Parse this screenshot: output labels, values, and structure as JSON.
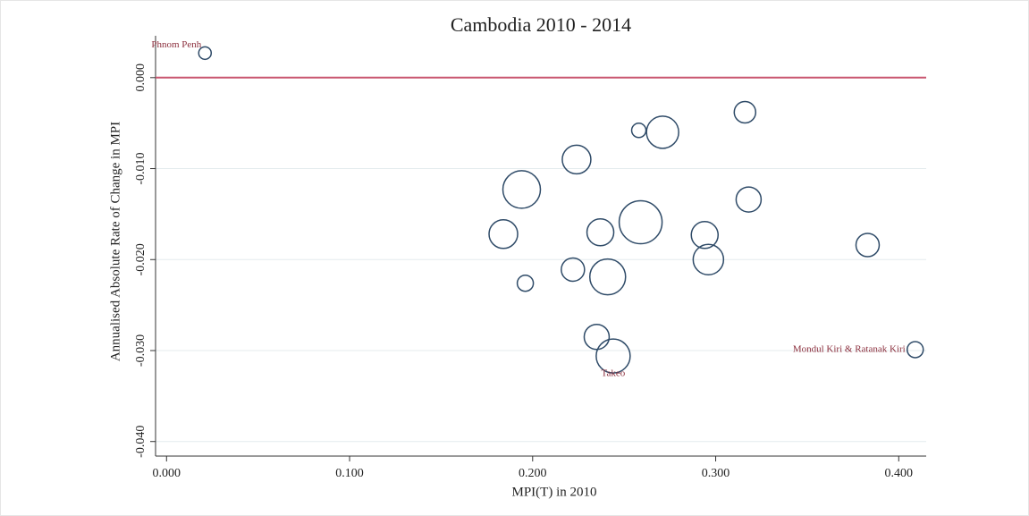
{
  "chart_data": {
    "type": "scatter",
    "title": "Cambodia 2010 - 2014",
    "x_label": "MPI(T) in 2010",
    "y_label": "Annualised Absolute Rate of Change in MPI",
    "x": [
      0.021,
      0.258,
      0.271,
      0.316,
      0.224,
      0.194,
      0.318,
      0.184,
      0.237,
      0.259,
      0.294,
      0.383,
      0.296,
      0.222,
      0.241,
      0.196,
      0.235,
      0.244,
      0.409
    ],
    "y": [
      0.0027,
      -0.0058,
      -0.006,
      -0.0038,
      -0.009,
      -0.0123,
      -0.0134,
      -0.0172,
      -0.017,
      -0.0159,
      -0.0173,
      -0.0184,
      -0.02,
      -0.0211,
      -0.0219,
      -0.0226,
      -0.0285,
      -0.0306,
      -0.0299
    ],
    "sizes": [
      7,
      8,
      18,
      12,
      16,
      21,
      14,
      16,
      15,
      24,
      15,
      13,
      17,
      13,
      20,
      9,
      14,
      19,
      9
    ],
    "labels": [
      "Phnom Penh",
      null,
      null,
      null,
      null,
      null,
      null,
      null,
      null,
      null,
      null,
      null,
      null,
      null,
      null,
      null,
      null,
      "Takeo",
      "Mondul Kiri & Ratanak Kiri"
    ],
    "color": "#2f4b68",
    "label_color": "#8b2e3c",
    "xlim": [
      -0.006,
      0.415
    ],
    "ylim": [
      -0.0416,
      0.0046
    ],
    "xticks": [
      {
        "value": 0,
        "label": "0.000"
      },
      {
        "value": 0.1,
        "label": "0.100"
      },
      {
        "value": 0.2,
        "label": "0.200"
      },
      {
        "value": 0.3,
        "label": "0.300"
      },
      {
        "value": 0.4,
        "label": "0.400"
      }
    ],
    "yticks": [
      {
        "value": 0,
        "label": "0.000"
      },
      {
        "value": -0.01,
        "label": "-0.010"
      },
      {
        "value": -0.02,
        "label": "-0.020"
      },
      {
        "value": -0.03,
        "label": "-0.030"
      },
      {
        "value": -0.04,
        "label": "-0.040"
      }
    ],
    "reference_line": {
      "y": 0,
      "color": "#c9556f"
    },
    "grid": true
  }
}
